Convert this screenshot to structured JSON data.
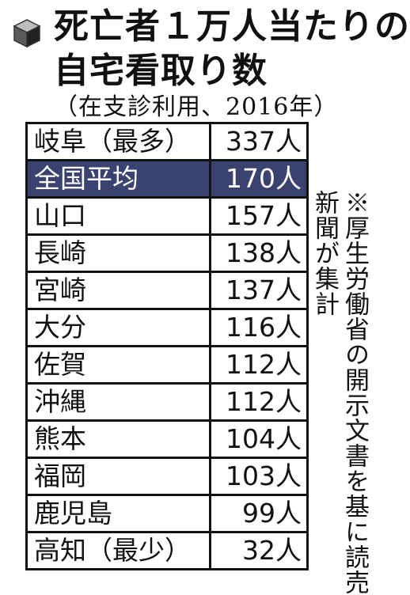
{
  "icon": "cube-icon",
  "title_line1": "死亡者１万人当たりの",
  "title_line2": "自宅看取り数",
  "subtitle": "（在支診利用、2016年）",
  "highlight_color": "#3a4270",
  "note_line1": "※厚生労働省の開示文書を基に読売",
  "note_line2": "新聞が集計",
  "chart_data": {
    "type": "table",
    "title": "死亡者１万人当たりの自宅看取り数",
    "subtitle": "（在支診利用、2016年）",
    "unit": "人",
    "rows": [
      {
        "label": "岐阜（最多）",
        "value": 337,
        "display": "337人"
      },
      {
        "label": "全国平均",
        "value": 170,
        "display": "170人",
        "highlight": true
      },
      {
        "label": "山口",
        "value": 157,
        "display": "157人"
      },
      {
        "label": "長崎",
        "value": 138,
        "display": "138人"
      },
      {
        "label": "宮崎",
        "value": 137,
        "display": "137人"
      },
      {
        "label": "大分",
        "value": 116,
        "display": "116人"
      },
      {
        "label": "佐賀",
        "value": 112,
        "display": "112人"
      },
      {
        "label": "沖縄",
        "value": 112,
        "display": "112人"
      },
      {
        "label": "熊本",
        "value": 104,
        "display": "104人"
      },
      {
        "label": "福岡",
        "value": 103,
        "display": "103人"
      },
      {
        "label": "鹿児島",
        "value": 99,
        "display": "99人"
      },
      {
        "label": "高知（最少）",
        "value": 32,
        "display": "32人"
      }
    ]
  }
}
